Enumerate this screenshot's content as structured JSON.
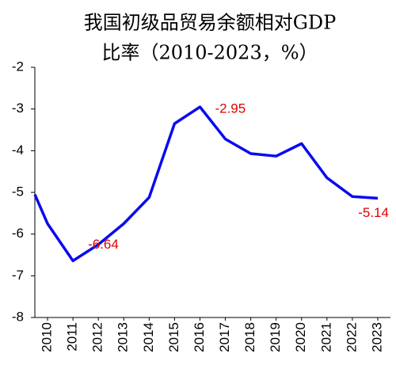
{
  "chart_data": {
    "type": "line",
    "title": "我国初级品贸易余额相对GDP",
    "subtitle": "比率（2010-2023，%）",
    "x": [
      2009.5,
      2010,
      2011,
      2012,
      2013,
      2014,
      2015,
      2016,
      2017,
      2018,
      2019,
      2020,
      2021,
      2022,
      2023
    ],
    "series": [
      {
        "name": null,
        "color": "#0a0af0",
        "values": [
          -5.05,
          -5.75,
          -6.64,
          -6.25,
          -5.75,
          -5.12,
          -3.35,
          -2.95,
          -3.72,
          -4.07,
          -4.13,
          -3.83,
          -4.65,
          -5.1,
          -5.14
        ],
        "value_labels": [
          null,
          null,
          "-6.64",
          null,
          null,
          null,
          null,
          "-2.95",
          null,
          null,
          null,
          null,
          null,
          null,
          "-5.14"
        ]
      }
    ],
    "label_color": "#e00000",
    "xlim": [
      2009.5,
      2023.5
    ],
    "xticks": [
      2010,
      2011,
      2012,
      2013,
      2014,
      2015,
      2016,
      2017,
      2018,
      2019,
      2020,
      2021,
      2022,
      2023
    ],
    "ylim": [
      -8,
      -2
    ],
    "yticks": [
      -2,
      -3,
      -4,
      -5,
      -6,
      -7,
      -8
    ],
    "grid": false
  }
}
